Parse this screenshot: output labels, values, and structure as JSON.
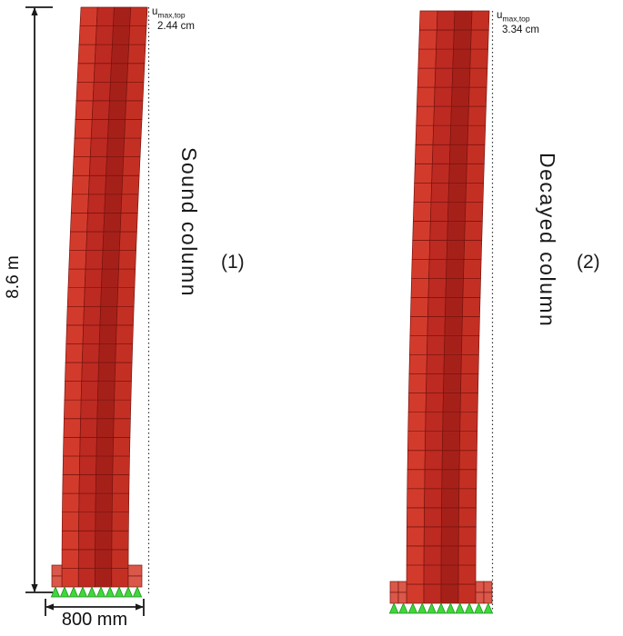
{
  "figure": {
    "left": {
      "label": "Sound column",
      "number": "(1)",
      "u_symbol": "u",
      "u_subscript": "max,top",
      "u_value": "2.44 cm"
    },
    "right": {
      "label": "Decayed column",
      "number": "(2)",
      "u_symbol": "u",
      "u_subscript": "max,top",
      "u_value": "3.34 cm"
    },
    "dim_height": "8.6 m",
    "dim_width": "800 mm"
  },
  "colors": {
    "mesh_fills": [
      "#d23b2c",
      "#bc2a22",
      "#a6201a",
      "#c33023"
    ],
    "mesh_stroke": "#7a130e",
    "pedestal_fill": "#d9584a",
    "support_fill": "#3fd83a",
    "support_stroke": "#1f8f1f",
    "dim_color": "#1a1a1a",
    "dotted_color": "#333333"
  }
}
